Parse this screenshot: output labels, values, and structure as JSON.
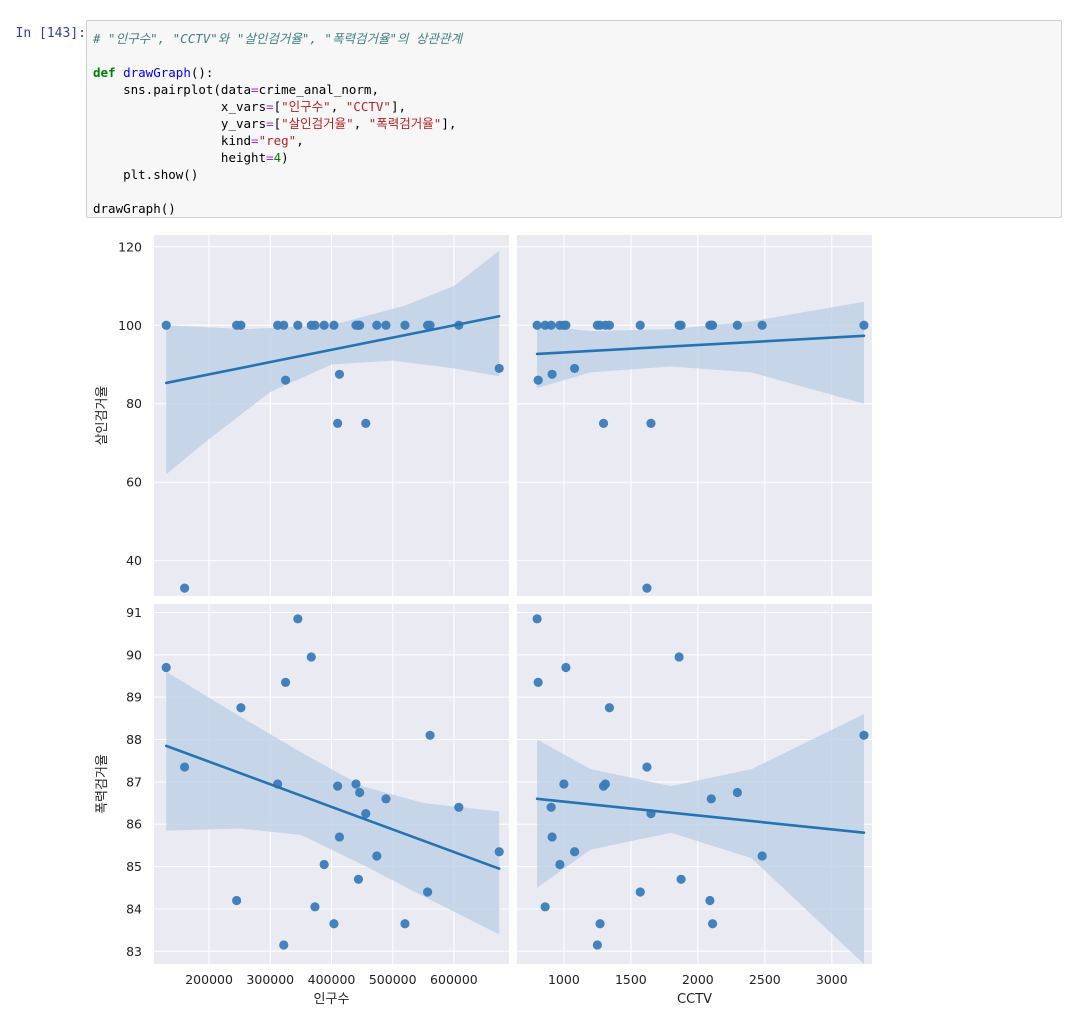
{
  "cell": {
    "prompt": "In [143]:",
    "code_lines": [
      "# \"인구수\", \"CCTV\"와 \"살인검거율\", \"폭력검거율\"의 상관관계",
      "",
      "def drawGraph():",
      "    sns.pairplot(data=crime_anal_norm,",
      "                 x_vars=[\"인구수\", \"CCTV\"],",
      "                 y_vars=[\"살인검거율\", \"폭력검거율\"],",
      "                 kind=\"reg\",",
      "                 height=4)",
      "    plt.show()",
      "",
      "drawGraph()"
    ]
  },
  "chart_data": {
    "type": "scatter",
    "style": "seaborn pairplot, kind reg, darkgrid",
    "colors": {
      "point": "#3a7cb8",
      "line": "#2474b4",
      "ci": "#b9cde4",
      "bg": "#eaeaf2",
      "grid": "#ffffff"
    },
    "x_vars": [
      "인구수",
      "CCTV"
    ],
    "y_vars": [
      "살인검거율",
      "폭력검거율"
    ],
    "x_axes": [
      {
        "label": "인구수",
        "range": [
          110000,
          690000
        ],
        "ticks": [
          200000,
          300000,
          400000,
          500000,
          600000
        ]
      },
      {
        "label": "CCTV",
        "range": [
          650,
          3300
        ],
        "ticks": [
          1000,
          1500,
          2000,
          2500,
          3000
        ]
      }
    ],
    "y_axes": [
      {
        "label": "살인검거율",
        "range": [
          31,
          123
        ],
        "ticks": [
          40,
          60,
          80,
          100,
          120
        ]
      },
      {
        "label": "폭력검거율",
        "range": [
          82.7,
          91.2
        ],
        "ticks": [
          83,
          84,
          85,
          86,
          87,
          88,
          89,
          90,
          91
        ]
      }
    ],
    "panels": [
      {
        "row": 0,
        "col": 0,
        "points": [
          [
            130000,
            100
          ],
          [
            160000,
            33
          ],
          [
            245000,
            100
          ],
          [
            252000,
            100
          ],
          [
            312000,
            100
          ],
          [
            322000,
            100
          ],
          [
            325000,
            86
          ],
          [
            345000,
            100
          ],
          [
            367000,
            100
          ],
          [
            373000,
            100
          ],
          [
            388000,
            100
          ],
          [
            404000,
            100
          ],
          [
            410000,
            75
          ],
          [
            413000,
            87.5
          ],
          [
            440000,
            100
          ],
          [
            444000,
            100
          ],
          [
            446000,
            100
          ],
          [
            456000,
            75
          ],
          [
            474000,
            100
          ],
          [
            489000,
            100
          ],
          [
            520000,
            100
          ],
          [
            557000,
            100
          ],
          [
            561000,
            100
          ],
          [
            608000,
            100
          ],
          [
            674000,
            89
          ]
        ],
        "fit": [
          [
            130000,
            85.3
          ],
          [
            674000,
            102.3
          ]
        ],
        "ci_upper": [
          [
            130000,
            100
          ],
          [
            260000,
            99
          ],
          [
            400000,
            100
          ],
          [
            520000,
            105
          ],
          [
            600000,
            110
          ],
          [
            674000,
            119
          ]
        ],
        "ci_lower": [
          [
            130000,
            62
          ],
          [
            200000,
            71
          ],
          [
            300000,
            83
          ],
          [
            400000,
            90
          ],
          [
            500000,
            91
          ],
          [
            600000,
            89
          ],
          [
            674000,
            87
          ]
        ]
      },
      {
        "row": 0,
        "col": 1,
        "points": [
          [
            800,
            100
          ],
          [
            808,
            86
          ],
          [
            860,
            100
          ],
          [
            905,
            100
          ],
          [
            912,
            87.5
          ],
          [
            970,
            100
          ],
          [
            1000,
            100
          ],
          [
            1015,
            100
          ],
          [
            1080,
            89
          ],
          [
            1250,
            100
          ],
          [
            1270,
            100
          ],
          [
            1296,
            75
          ],
          [
            1310,
            100
          ],
          [
            1340,
            100
          ],
          [
            1570,
            100
          ],
          [
            1620,
            33
          ],
          [
            1650,
            75
          ],
          [
            1860,
            100
          ],
          [
            1875,
            100
          ],
          [
            2090,
            100
          ],
          [
            2100,
            100
          ],
          [
            2110,
            100
          ],
          [
            2295,
            100
          ],
          [
            2480,
            100
          ],
          [
            3240,
            100
          ]
        ],
        "fit": [
          [
            800,
            92.7
          ],
          [
            3240,
            97.3
          ]
        ],
        "ci_upper": [
          [
            800,
            100
          ],
          [
            1200,
            98.5
          ],
          [
            1800,
            99
          ],
          [
            2400,
            101
          ],
          [
            3240,
            106
          ]
        ],
        "ci_lower": [
          [
            800,
            84
          ],
          [
            1200,
            88
          ],
          [
            1800,
            89.5
          ],
          [
            2400,
            88
          ],
          [
            3240,
            80
          ]
        ]
      },
      {
        "row": 1,
        "col": 0,
        "points": [
          [
            130000,
            89.7
          ],
          [
            160000,
            87.35
          ],
          [
            245000,
            84.2
          ],
          [
            252000,
            88.75
          ],
          [
            312000,
            86.95
          ],
          [
            322000,
            83.15
          ],
          [
            325000,
            89.35
          ],
          [
            345000,
            90.85
          ],
          [
            367000,
            89.95
          ],
          [
            373000,
            84.05
          ],
          [
            388000,
            85.05
          ],
          [
            404000,
            83.65
          ],
          [
            410000,
            86.9
          ],
          [
            413000,
            85.7
          ],
          [
            440000,
            86.95
          ],
          [
            444000,
            84.7
          ],
          [
            446000,
            86.75
          ],
          [
            456000,
            86.25
          ],
          [
            474000,
            85.25
          ],
          [
            489000,
            86.6
          ],
          [
            520000,
            83.65
          ],
          [
            557000,
            84.4
          ],
          [
            561000,
            88.1
          ],
          [
            608000,
            86.4
          ],
          [
            674000,
            85.35
          ]
        ],
        "fit": [
          [
            130000,
            87.85
          ],
          [
            674000,
            84.95
          ]
        ],
        "ci_upper": [
          [
            130000,
            89.6
          ],
          [
            250000,
            88.55
          ],
          [
            350000,
            87.7
          ],
          [
            450000,
            86.9
          ],
          [
            550000,
            86.5
          ],
          [
            674000,
            86.3
          ]
        ],
        "ci_lower": [
          [
            130000,
            85.85
          ],
          [
            250000,
            85.9
          ],
          [
            350000,
            85.75
          ],
          [
            450000,
            85.05
          ],
          [
            550000,
            84.3
          ],
          [
            674000,
            83.4
          ]
        ]
      },
      {
        "row": 1,
        "col": 1,
        "points": [
          [
            800,
            90.85
          ],
          [
            808,
            89.35
          ],
          [
            860,
            84.05
          ],
          [
            905,
            86.4
          ],
          [
            912,
            85.7
          ],
          [
            970,
            85.05
          ],
          [
            1000,
            86.95
          ],
          [
            1015,
            89.7
          ],
          [
            1080,
            85.35
          ],
          [
            1250,
            83.15
          ],
          [
            1270,
            83.65
          ],
          [
            1296,
            86.9
          ],
          [
            1310,
            86.95
          ],
          [
            1340,
            88.75
          ],
          [
            1570,
            84.4
          ],
          [
            1620,
            87.35
          ],
          [
            1650,
            86.25
          ],
          [
            1860,
            89.95
          ],
          [
            1875,
            84.7
          ],
          [
            2090,
            84.2
          ],
          [
            2100,
            86.6
          ],
          [
            2110,
            83.65
          ],
          [
            2295,
            86.75
          ],
          [
            2480,
            85.25
          ],
          [
            3240,
            88.1
          ]
        ],
        "fit": [
          [
            800,
            86.6
          ],
          [
            3240,
            85.8
          ]
        ],
        "ci_upper": [
          [
            800,
            88.0
          ],
          [
            1200,
            87.3
          ],
          [
            1800,
            86.9
          ],
          [
            2400,
            87.3
          ],
          [
            3240,
            88.6
          ]
        ],
        "ci_lower": [
          [
            800,
            84.5
          ],
          [
            1200,
            85.4
          ],
          [
            1800,
            85.8
          ],
          [
            2400,
            85.2
          ],
          [
            3240,
            82.7
          ]
        ]
      }
    ]
  }
}
